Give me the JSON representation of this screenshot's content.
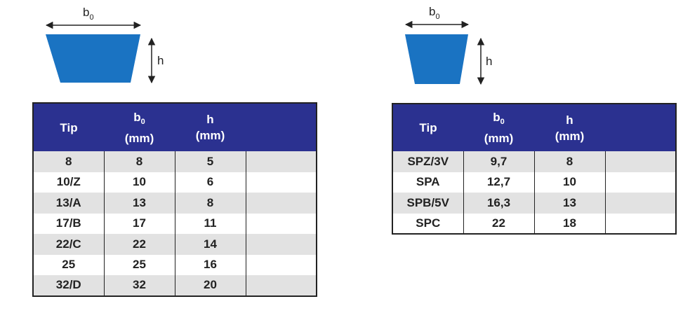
{
  "left": {
    "diagram": {
      "width_label": "b",
      "width_sub": "0",
      "height_label": "h"
    },
    "headers": {
      "tip": "Tip",
      "b0": {
        "label": "b",
        "sub": "0",
        "unit": "(mm)"
      },
      "h": {
        "label": "h",
        "unit": "(mm)"
      }
    },
    "rows": [
      {
        "tip": "8",
        "b0": "8",
        "h": "5"
      },
      {
        "tip": "10/Z",
        "b0": "10",
        "h": "6"
      },
      {
        "tip": "13/A",
        "b0": "13",
        "h": "8"
      },
      {
        "tip": "17/B",
        "b0": "17",
        "h": "11"
      },
      {
        "tip": "22/C",
        "b0": "22",
        "h": "14"
      },
      {
        "tip": "25",
        "b0": "25",
        "h": "16"
      },
      {
        "tip": "32/D",
        "b0": "32",
        "h": "20"
      }
    ]
  },
  "right": {
    "diagram": {
      "width_label": "b",
      "width_sub": "0",
      "height_label": "h"
    },
    "headers": {
      "tip": "Tip",
      "b0": {
        "label": "b",
        "sub": "0",
        "unit": "(mm)"
      },
      "h": {
        "label": "h",
        "unit": "(mm)"
      }
    },
    "rows": [
      {
        "tip": "SPZ/3V",
        "b0": "9,7",
        "h": "8"
      },
      {
        "tip": "SPA",
        "b0": "12,7",
        "h": "10"
      },
      {
        "tip": "SPB/5V",
        "b0": "16,3",
        "h": "13"
      },
      {
        "tip": "SPC",
        "b0": "22",
        "h": "18"
      }
    ]
  },
  "colors": {
    "belt": "#1a73c2",
    "header": "#2b3190",
    "stripe": "#e2e2e2"
  }
}
